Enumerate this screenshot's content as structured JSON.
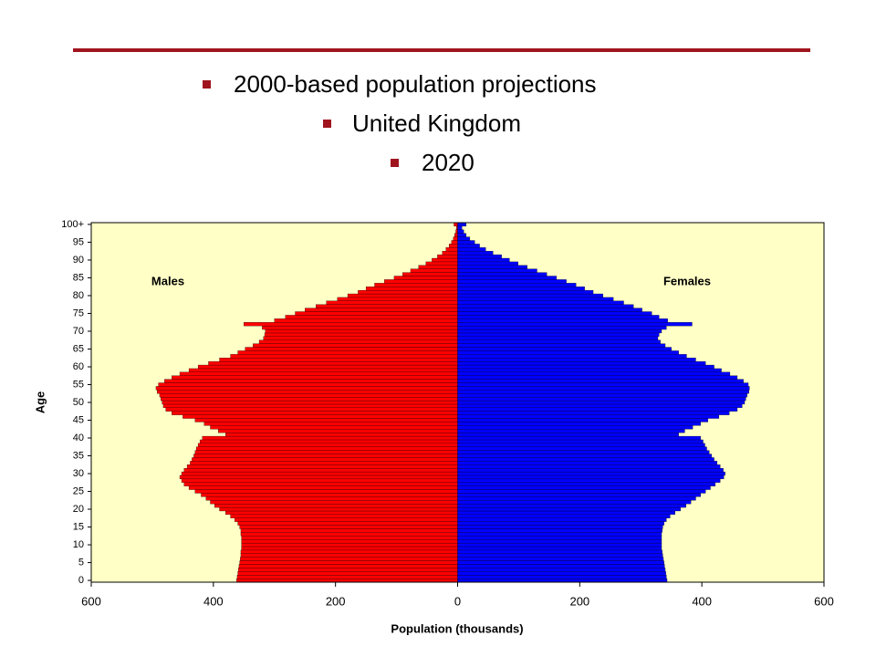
{
  "header": {
    "items": [
      "2000-based population projections",
      "United Kingdom",
      "2020"
    ]
  },
  "chart_data": {
    "type": "pyramid",
    "x_label": "Population (thousands)",
    "y_label": "Age",
    "categories": [
      "0",
      null,
      null,
      null,
      null,
      "5",
      null,
      null,
      null,
      null,
      "10",
      null,
      null,
      null,
      null,
      "15",
      null,
      null,
      null,
      null,
      "20",
      null,
      null,
      null,
      null,
      "25",
      null,
      null,
      null,
      null,
      "30",
      null,
      null,
      null,
      null,
      "35",
      null,
      null,
      null,
      null,
      "40",
      null,
      null,
      null,
      null,
      "45",
      null,
      null,
      null,
      null,
      "50",
      null,
      null,
      null,
      null,
      "55",
      null,
      null,
      null,
      null,
      "60",
      null,
      null,
      null,
      null,
      "65",
      null,
      null,
      null,
      null,
      "70",
      null,
      null,
      null,
      null,
      "75",
      null,
      null,
      null,
      null,
      "80",
      null,
      null,
      null,
      null,
      "85",
      null,
      null,
      null,
      null,
      "90",
      null,
      null,
      null,
      null,
      "95",
      null,
      null,
      null,
      null,
      "100+"
    ],
    "series": [
      {
        "name": "Males",
        "color": "#ff0000",
        "values": [
          -362,
          -361,
          -360,
          -359,
          -358,
          -357,
          -356,
          -355,
          -355,
          -354,
          -354,
          -354,
          -354,
          -355,
          -355,
          -357,
          -360,
          -365,
          -372,
          -380,
          -390,
          -398,
          -405,
          -412,
          -420,
          -430,
          -440,
          -448,
          -452,
          -455,
          -452,
          -448,
          -443,
          -438,
          -435,
          -432,
          -430,
          -428,
          -425,
          -422,
          -418,
          -380,
          -392,
          -405,
          -415,
          -430,
          -450,
          -468,
          -478,
          -482,
          -484,
          -486,
          -488,
          -492,
          -494,
          -490,
          -480,
          -468,
          -455,
          -440,
          -425,
          -408,
          -390,
          -372,
          -360,
          -348,
          -335,
          -325,
          -318,
          -316,
          -315,
          -320,
          -350,
          -300,
          -282,
          -266,
          -250,
          -232,
          -215,
          -197,
          -180,
          -163,
          -150,
          -136,
          -120,
          -104,
          -90,
          -77,
          -64,
          -52,
          -42,
          -33,
          -25,
          -19,
          -14,
          -10,
          -7,
          -5,
          -3,
          -2,
          -6
        ]
      },
      {
        "name": "Females",
        "color": "#0000ff",
        "values": [
          343,
          342,
          341,
          340,
          339,
          338,
          337,
          336,
          335,
          334,
          334,
          334,
          334,
          334,
          335,
          336,
          338,
          342,
          348,
          356,
          365,
          374,
          382,
          390,
          398,
          406,
          414,
          422,
          430,
          436,
          438,
          435,
          430,
          425,
          420,
          416,
          412,
          408,
          405,
          402,
          398,
          362,
          372,
          385,
          398,
          410,
          428,
          445,
          458,
          466,
          470,
          472,
          474,
          477,
          478,
          476,
          468,
          458,
          446,
          432,
          420,
          406,
          390,
          375,
          362,
          350,
          340,
          332,
          328,
          330,
          334,
          342,
          384,
          344,
          330,
          318,
          302,
          288,
          272,
          255,
          238,
          222,
          208,
          194,
          178,
          162,
          146,
          130,
          114,
          99,
          85,
          72,
          58,
          46,
          36,
          28,
          20,
          14,
          10,
          7,
          14
        ]
      }
    ],
    "xlim": [
      -600,
      600
    ],
    "xticks": [
      {
        "value": -600,
        "label": "600"
      },
      {
        "value": -400,
        "label": "400"
      },
      {
        "value": -200,
        "label": "200"
      },
      0,
      200,
      400,
      600
    ],
    "background": "#ffffc6"
  }
}
